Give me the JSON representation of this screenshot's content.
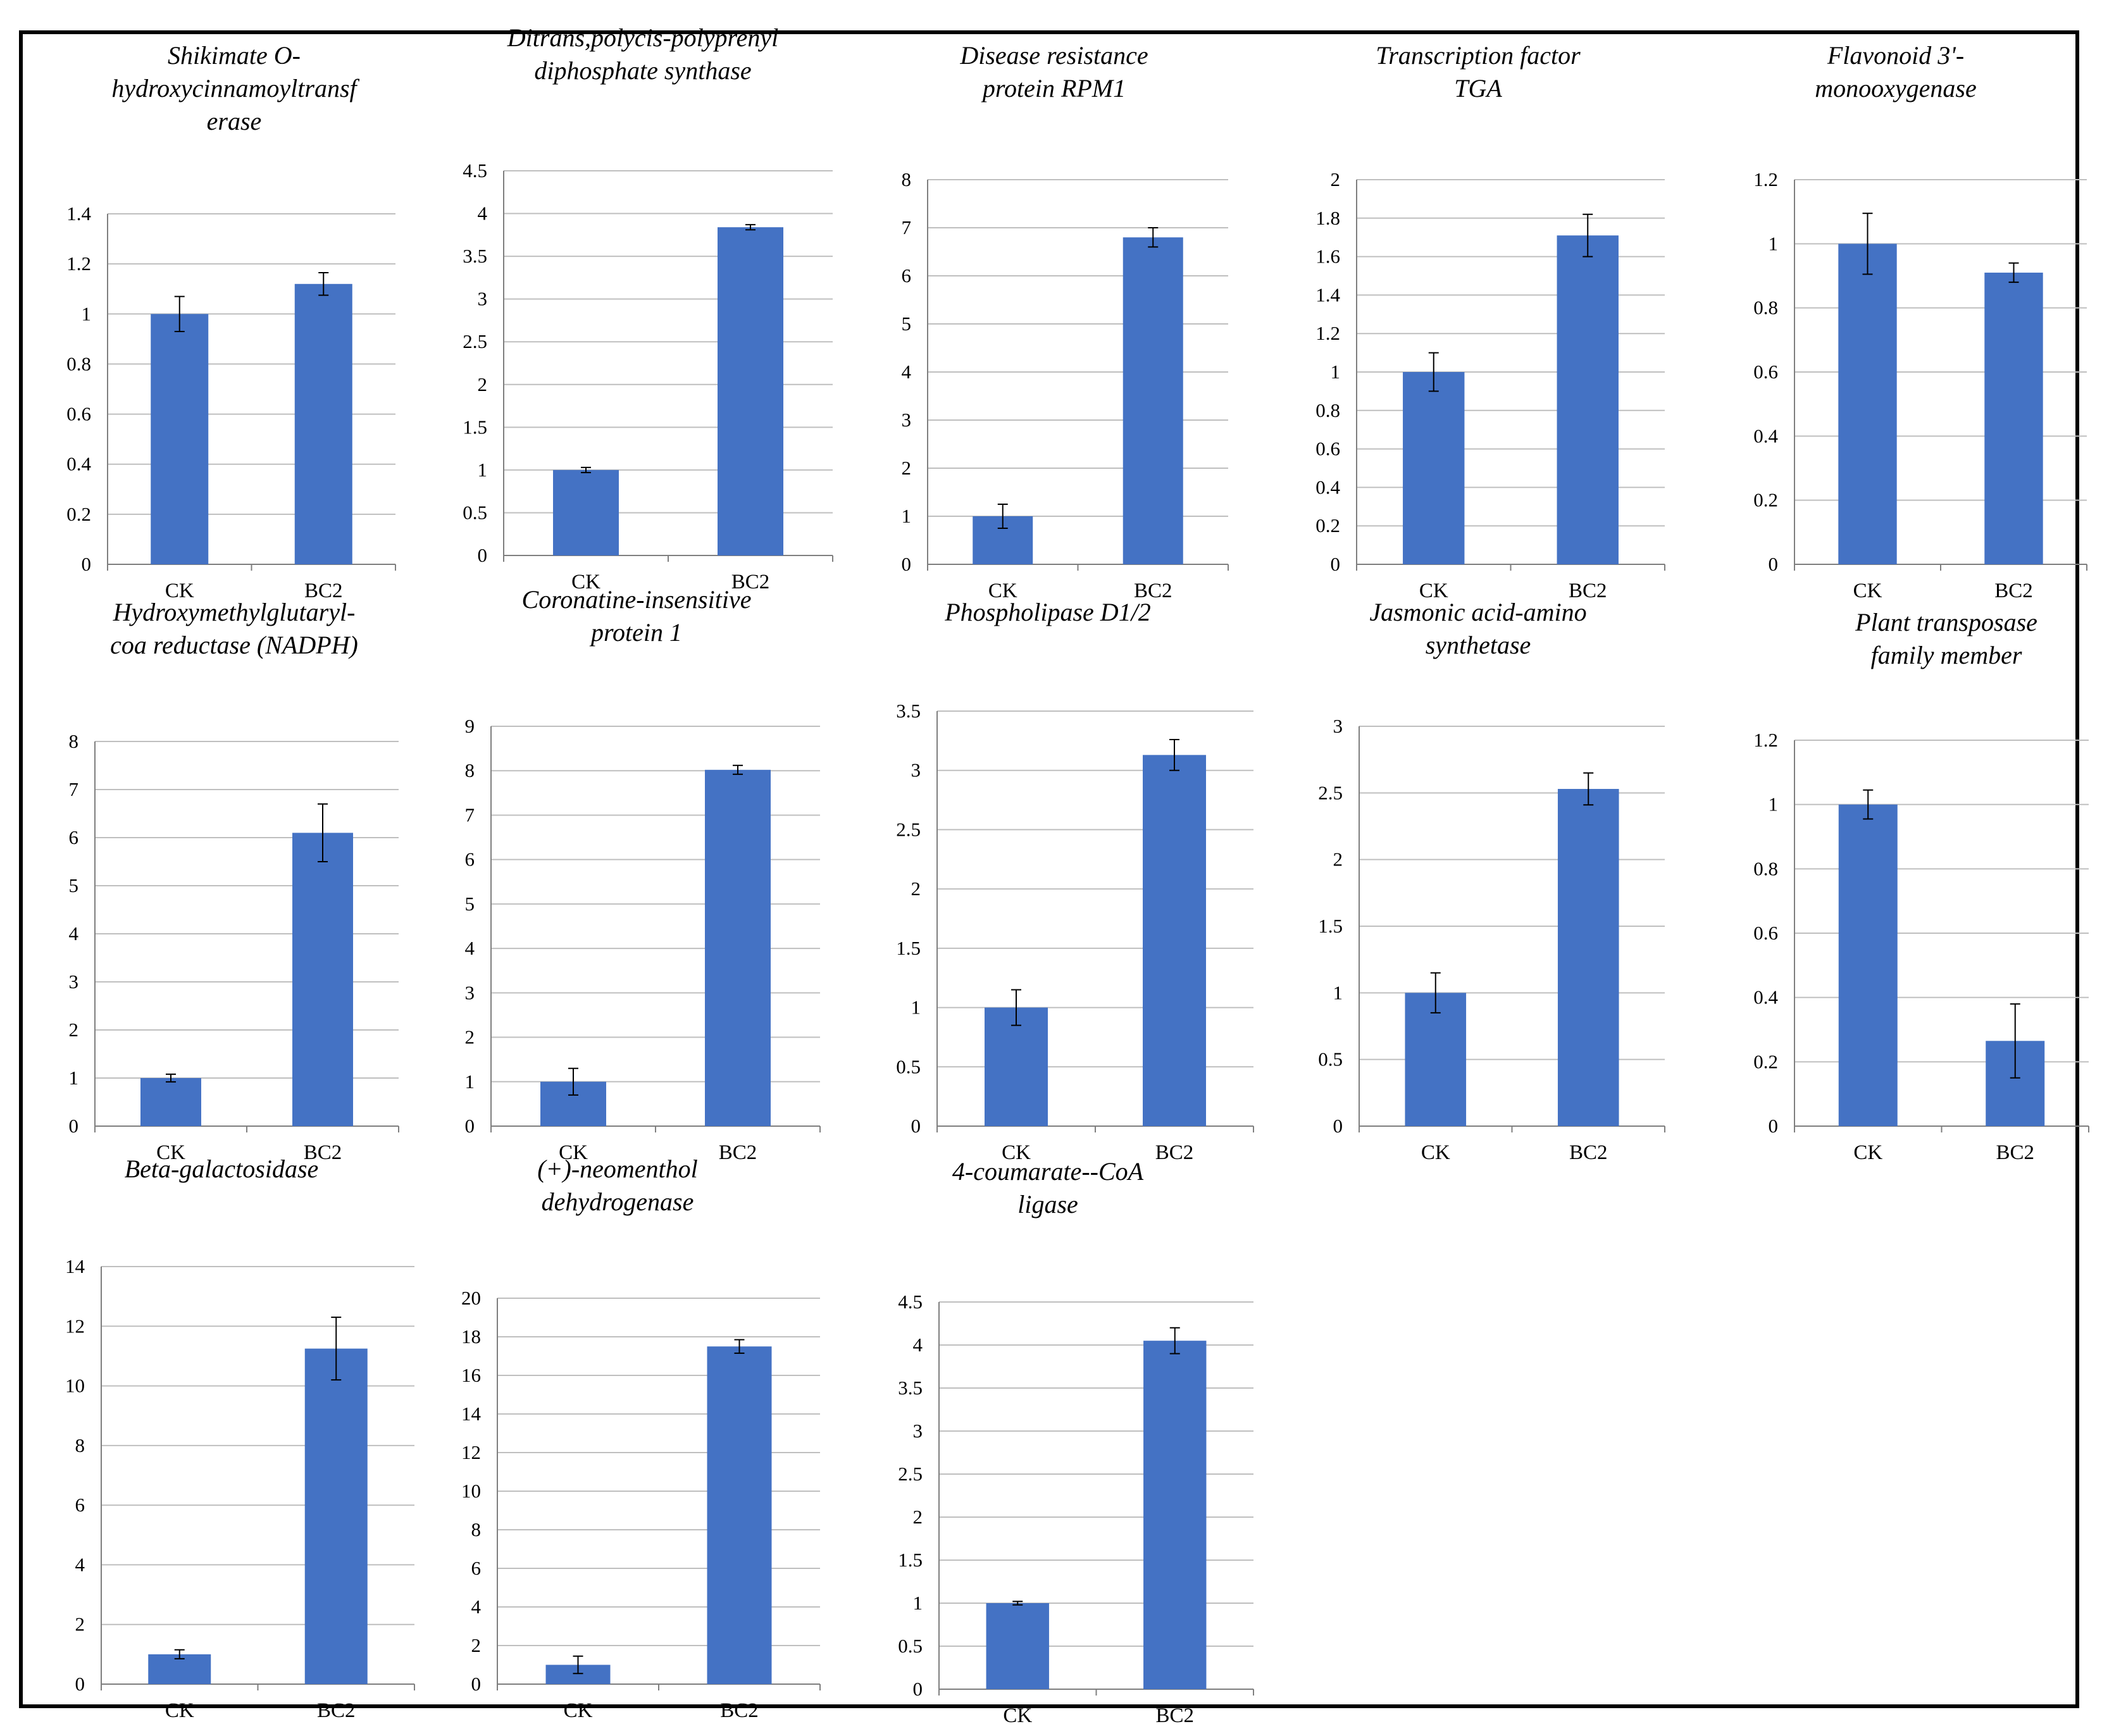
{
  "figure": {
    "bar_color": "#4472C4",
    "grid_color": "#BFBFBF",
    "axis_color": "#7F7F7F",
    "error_color": "#000000"
  },
  "chart_data": [
    {
      "type": "bar",
      "title": "Shikimate O-\nhydroxycinnamoyltransf\nerase",
      "categories": [
        "CK",
        "BC2"
      ],
      "values": [
        1,
        1.12
      ],
      "errors": [
        0.07,
        0.045
      ],
      "ylim": [
        0,
        1.4
      ],
      "yticks": [
        "0",
        "0.2",
        "0.4",
        "0.6",
        "0.8",
        "1",
        "1.2",
        "1.4"
      ]
    },
    {
      "type": "bar",
      "title": "Ditrans,polycis-polyprenyl\ndiphosphate synthase",
      "categories": [
        "CK",
        "BC2"
      ],
      "values": [
        1,
        3.84
      ],
      "errors": [
        0.03,
        0.03
      ],
      "ylim": [
        0,
        4.5
      ],
      "yticks": [
        "0",
        "0.5",
        "1",
        "1.5",
        "2",
        "2.5",
        "3",
        "3.5",
        "4",
        "4.5"
      ]
    },
    {
      "type": "bar",
      "title": "Disease resistance\nprotein RPM1",
      "categories": [
        "CK",
        "BC2"
      ],
      "values": [
        1,
        6.8
      ],
      "errors": [
        0.25,
        0.2
      ],
      "ylim": [
        0,
        8
      ],
      "yticks": [
        "0",
        "1",
        "2",
        "3",
        "4",
        "5",
        "6",
        "7",
        "8"
      ]
    },
    {
      "type": "bar",
      "title": "Transcription factor\nTGA",
      "categories": [
        "CK",
        "BC2"
      ],
      "values": [
        1,
        1.71
      ],
      "errors": [
        0.1,
        0.11
      ],
      "ylim": [
        0,
        2
      ],
      "yticks": [
        "0",
        "0.2",
        "0.4",
        "0.6",
        "0.8",
        "1",
        "1.2",
        "1.4",
        "1.6",
        "1.8",
        "2"
      ]
    },
    {
      "type": "bar",
      "title": "Flavonoid 3'-\nmonooxygenase",
      "categories": [
        "CK",
        "BC2"
      ],
      "values": [
        1,
        0.91
      ],
      "errors": [
        0.095,
        0.03
      ],
      "ylim": [
        0,
        1.2
      ],
      "yticks": [
        "0",
        "0.2",
        "0.4",
        "0.6",
        "0.8",
        "1",
        "1.2"
      ]
    },
    {
      "type": "bar",
      "title": "Hydroxymethylglutaryl-\ncoa reductase (NADPH)",
      "categories": [
        "CK",
        "BC2"
      ],
      "values": [
        1,
        6.1
      ],
      "errors": [
        0.08,
        0.6
      ],
      "ylim": [
        0,
        8
      ],
      "yticks": [
        "0",
        "1",
        "2",
        "3",
        "4",
        "5",
        "6",
        "7",
        "8"
      ]
    },
    {
      "type": "bar",
      "title": "Coronatine-insensitive\nprotein 1",
      "categories": [
        "CK",
        "BC2"
      ],
      "values": [
        1,
        8.02
      ],
      "errors": [
        0.3,
        0.1
      ],
      "ylim": [
        0,
        9
      ],
      "yticks": [
        "0",
        "1",
        "2",
        "3",
        "4",
        "5",
        "6",
        "7",
        "8",
        "9"
      ]
    },
    {
      "type": "bar",
      "title": "Phospholipase D1/2",
      "categories": [
        "CK",
        "BC2"
      ],
      "values": [
        1,
        3.13
      ],
      "errors": [
        0.15,
        0.13
      ],
      "ylim": [
        0,
        3.5
      ],
      "yticks": [
        "0",
        "0.5",
        "1",
        "1.5",
        "2",
        "2.5",
        "3",
        "3.5"
      ]
    },
    {
      "type": "bar",
      "title": "Jasmonic acid-amino\nsynthetase",
      "categories": [
        "CK",
        "BC2"
      ],
      "values": [
        1,
        2.53
      ],
      "errors": [
        0.15,
        0.12
      ],
      "ylim": [
        0,
        3
      ],
      "yticks": [
        "0",
        "0.5",
        "1",
        "1.5",
        "2",
        "2.5",
        "3"
      ]
    },
    {
      "type": "bar",
      "title": "Plant transposase\nfamily member",
      "categories": [
        "CK",
        "BC2"
      ],
      "values": [
        1,
        0.265
      ],
      "errors": [
        0.045,
        0.115
      ],
      "ylim": [
        0,
        1.2
      ],
      "yticks": [
        "0",
        "0.2",
        "0.4",
        "0.6",
        "0.8",
        "1",
        "1.2"
      ]
    },
    {
      "type": "bar",
      "title": "Beta-galactosidase",
      "categories": [
        "CK",
        "BC2"
      ],
      "values": [
        1,
        11.25
      ],
      "errors": [
        0.15,
        1.05
      ],
      "ylim": [
        0,
        14
      ],
      "yticks": [
        "0",
        "2",
        "4",
        "6",
        "8",
        "10",
        "12",
        "14"
      ]
    },
    {
      "type": "bar",
      "title": "(+)-neomenthol\ndehydrogenase",
      "categories": [
        "CK",
        "BC2"
      ],
      "values": [
        1,
        17.5
      ],
      "errors": [
        0.45,
        0.35
      ],
      "ylim": [
        0,
        20
      ],
      "yticks": [
        "0",
        "2",
        "4",
        "6",
        "8",
        "10",
        "12",
        "14",
        "16",
        "18",
        "20"
      ]
    },
    {
      "type": "bar",
      "title": "4-coumarate--CoA\nligase",
      "categories": [
        "CK",
        "BC2"
      ],
      "values": [
        1,
        4.05
      ],
      "errors": [
        0.02,
        0.15
      ],
      "ylim": [
        0,
        4.5
      ],
      "yticks": [
        "0",
        "0.5",
        "1",
        "1.5",
        "2",
        "2.5",
        "3",
        "3.5",
        "4",
        "4.5"
      ]
    }
  ]
}
